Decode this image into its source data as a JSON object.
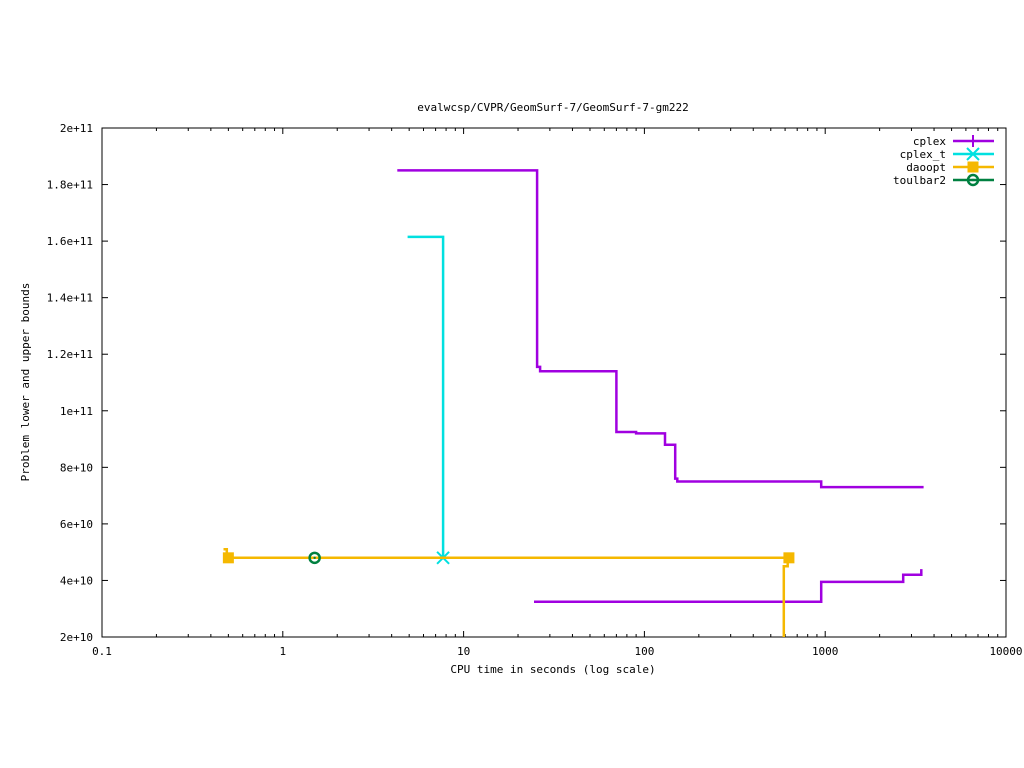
{
  "chart_data": {
    "type": "line",
    "title": "evalwcsp/CVPR/GeomSurf-7/GeomSurf-7-gm222",
    "xlabel": "CPU time in seconds (log scale)",
    "ylabel": "Problem lower and upper bounds",
    "xscale": "log",
    "xlim": [
      0.1,
      10000
    ],
    "ylim": [
      20000000000,
      200000000000
    ],
    "xticks": [
      0.1,
      1,
      10,
      100,
      1000,
      10000
    ],
    "xtick_labels": [
      "0.1",
      "1",
      "10",
      "100",
      "1000",
      "10000"
    ],
    "yticks": [
      20000000000,
      40000000000,
      60000000000,
      80000000000,
      100000000000,
      120000000000,
      140000000000,
      160000000000,
      180000000000,
      200000000000
    ],
    "ytick_labels": [
      "2e+10",
      "4e+10",
      "6e+10",
      "8e+10",
      "1e+11",
      "1.2e+11",
      "1.4e+11",
      "1.6e+11",
      "1.8e+11",
      "2e+11"
    ],
    "grid": false,
    "legend_position": "top-right",
    "series": [
      {
        "name": "cplex",
        "color": "#a000e0",
        "marker": "plus",
        "segments": [
          [
            [
              4.3,
              185000000000
            ],
            [
              25.5,
              185000000000
            ],
            [
              25.5,
              115500000000
            ],
            [
              26.5,
              115500000000
            ],
            [
              26.5,
              114000000000
            ],
            [
              70,
              114000000000
            ],
            [
              70,
              92500000000
            ],
            [
              90,
              92500000000
            ],
            [
              90,
              92000000000
            ],
            [
              130,
              92000000000
            ],
            [
              130,
              88000000000
            ],
            [
              148,
              88000000000
            ],
            [
              148,
              76000000000
            ],
            [
              152,
              76000000000
            ],
            [
              152,
              75000000000
            ],
            [
              950,
              75000000000
            ],
            [
              950,
              73000000000
            ],
            [
              3500,
              73000000000
            ]
          ],
          [
            [
              24.5,
              32500000000
            ],
            [
              950,
              32500000000
            ],
            [
              950,
              39500000000
            ],
            [
              2700,
              39500000000
            ],
            [
              2700,
              42000000000
            ],
            [
              3400,
              42000000000
            ],
            [
              3400,
              44000000000
            ]
          ]
        ],
        "markers": []
      },
      {
        "name": "cplex_t",
        "color": "#00e0e0",
        "marker": "star",
        "segments": [
          [
            [
              4.9,
              161500000000
            ],
            [
              7.7,
              161500000000
            ],
            [
              7.7,
              48000000000
            ],
            [
              620,
              48000000000
            ]
          ]
        ],
        "markers": [
          [
            7.7,
            48000000000
          ]
        ]
      },
      {
        "name": "daoopt",
        "color": "#f5b800",
        "marker": "filled-square",
        "segments": [
          [
            [
              0.47,
              51000000000
            ],
            [
              0.49,
              51000000000
            ],
            [
              0.49,
              48000000000
            ],
            [
              620,
              48000000000
            ]
          ],
          [
            [
              590,
              20000000000
            ],
            [
              590,
              45000000000
            ],
            [
              620,
              45000000000
            ],
            [
              620,
              48000000000
            ]
          ]
        ],
        "markers": [
          [
            0.5,
            48000000000
          ],
          [
            630,
            48000000000
          ]
        ]
      },
      {
        "name": "toulbar2",
        "color": "#008040",
        "marker": "open-circle",
        "segments": [],
        "markers": [
          [
            1.5,
            48000000000
          ]
        ]
      }
    ]
  }
}
